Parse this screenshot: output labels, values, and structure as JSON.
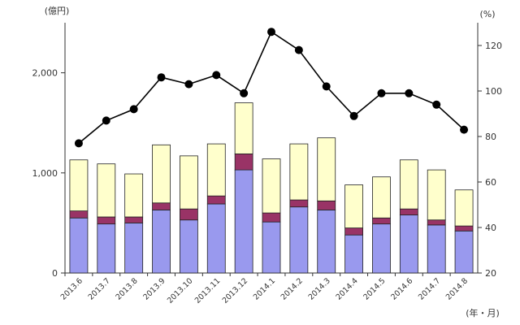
{
  "chart_data": {
    "type": "bar",
    "stacked": true,
    "categories": [
      "2013.6",
      "2013.7",
      "2013.8",
      "2013.9",
      "2013.10",
      "2013.11",
      "2013.12",
      "2014.1",
      "2014.2",
      "2014.3",
      "2014.4",
      "2014.5",
      "2014.6",
      "2014.7",
      "2014.8"
    ],
    "series": [
      {
        "kind": "bar",
        "color": "#9999ee",
        "values": [
          550,
          490,
          500,
          630,
          530,
          690,
          1030,
          510,
          660,
          630,
          380,
          490,
          580,
          480,
          420
        ]
      },
      {
        "kind": "bar",
        "color": "#993366",
        "values": [
          70,
          70,
          60,
          70,
          110,
          80,
          160,
          90,
          70,
          90,
          70,
          60,
          60,
          50,
          50
        ]
      },
      {
        "kind": "bar",
        "color": "#ffffcc",
        "values": [
          510,
          530,
          430,
          580,
          530,
          520,
          510,
          540,
          560,
          630,
          430,
          410,
          490,
          500,
          360
        ]
      },
      {
        "kind": "line",
        "axis": "right",
        "color": "#000000",
        "values": [
          77,
          87,
          92,
          106,
          103,
          107,
          99,
          126,
          118,
          102,
          89,
          99,
          99,
          94,
          83
        ]
      }
    ],
    "y_left": {
      "unit": "(億円)",
      "min": 0,
      "max": 2500,
      "ticks": [
        0,
        1000,
        2000
      ],
      "tick_labels": [
        "0",
        "1,000",
        "2,000"
      ]
    },
    "y_right": {
      "unit": "(%)",
      "min": 20,
      "max": 130,
      "ticks": [
        20,
        40,
        60,
        80,
        100,
        120
      ],
      "tick_labels": [
        "20",
        "40",
        "60",
        "80",
        "100",
        "120"
      ]
    },
    "x_unit": "(年・月)",
    "grid": false,
    "legend": "none"
  }
}
